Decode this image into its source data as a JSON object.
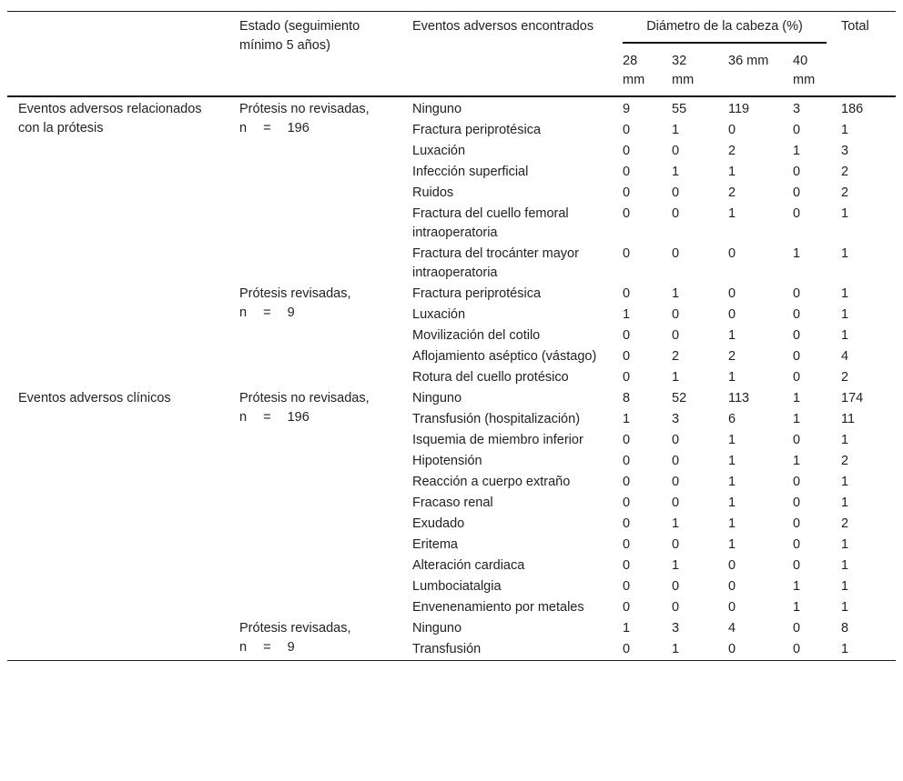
{
  "header": {
    "col_group": "",
    "col_status": "Estado (seguimiento mínimo 5 años)",
    "col_event": "Eventos adversos encontrados",
    "col_diameter": "Diámetro de la cabeza (%)",
    "col_total": "Total",
    "diameters": [
      "28 mm",
      "32 mm",
      "36 mm",
      "40 mm"
    ]
  },
  "sections": [
    {
      "label": "Eventos adversos relacionados con la prótesis",
      "subgroups": [
        {
          "status": "Prótesis no revisadas,",
          "n": "n = 196",
          "rows": [
            {
              "event": "Ninguno",
              "values": [
                "9",
                "55",
                "119",
                "3"
              ],
              "total": "186"
            },
            {
              "event": "Fractura periprotésica",
              "values": [
                "0",
                "1",
                "0",
                "0"
              ],
              "total": "1"
            },
            {
              "event": "Luxación",
              "values": [
                "0",
                "0",
                "2",
                "1"
              ],
              "total": "3"
            },
            {
              "event": "Infección superficial",
              "values": [
                "0",
                "1",
                "1",
                "0"
              ],
              "total": "2"
            },
            {
              "event": "Ruidos",
              "values": [
                "0",
                "0",
                "2",
                "0"
              ],
              "total": "2"
            },
            {
              "event": "Fractura del cuello femoral intraoperatoria",
              "values": [
                "0",
                "0",
                "1",
                "0"
              ],
              "total": "1"
            },
            {
              "event": "Fractura del trocánter mayor intraoperatoria",
              "values": [
                "0",
                "0",
                "0",
                "1"
              ],
              "total": "1"
            }
          ]
        },
        {
          "status": "Prótesis revisadas,",
          "n": "n = 9",
          "rows": [
            {
              "event": "Fractura periprotésica",
              "values": [
                "0",
                "1",
                "0",
                "0"
              ],
              "total": "1"
            },
            {
              "event": "Luxación",
              "values": [
                "1",
                "0",
                "0",
                "0"
              ],
              "total": "1"
            },
            {
              "event": "Movilización del cotilo",
              "values": [
                "0",
                "0",
                "1",
                "0"
              ],
              "total": "1"
            },
            {
              "event": "Aflojamiento aséptico (vástago)",
              "values": [
                "0",
                "2",
                "2",
                "0"
              ],
              "total": "4"
            },
            {
              "event": "Rotura del cuello protésico",
              "values": [
                "0",
                "1",
                "1",
                "0"
              ],
              "total": "2"
            }
          ]
        }
      ]
    },
    {
      "label": "Eventos adversos clínicos",
      "subgroups": [
        {
          "status": "Prótesis no revisadas,",
          "n": "n = 196",
          "rows": [
            {
              "event": "Ninguno",
              "values": [
                "8",
                "52",
                "113",
                "1"
              ],
              "total": "174"
            },
            {
              "event": "Transfusión (hospitalización)",
              "values": [
                "1",
                "3",
                "6",
                "1"
              ],
              "total": "11"
            },
            {
              "event": "Isquemia de miembro inferior",
              "values": [
                "0",
                "0",
                "1",
                "0"
              ],
              "total": "1"
            },
            {
              "event": "Hipotensión",
              "values": [
                "0",
                "0",
                "1",
                "1"
              ],
              "total": "2"
            },
            {
              "event": "Reacción a cuerpo extraño",
              "values": [
                "0",
                "0",
                "1",
                "0"
              ],
              "total": "1"
            },
            {
              "event": "Fracaso renal",
              "values": [
                "0",
                "0",
                "1",
                "0"
              ],
              "total": "1"
            },
            {
              "event": "Exudado",
              "values": [
                "0",
                "1",
                "1",
                "0"
              ],
              "total": "2"
            },
            {
              "event": "Eritema",
              "values": [
                "0",
                "0",
                "1",
                "0"
              ],
              "total": "1"
            },
            {
              "event": "Alteración cardiaca",
              "values": [
                "0",
                "1",
                "0",
                "0"
              ],
              "total": "1"
            },
            {
              "event": "Lumbociatalgia",
              "values": [
                "0",
                "0",
                "0",
                "1"
              ],
              "total": "1"
            },
            {
              "event": "Envenenamiento por metales",
              "values": [
                "0",
                "0",
                "0",
                "1"
              ],
              "total": "1"
            }
          ]
        },
        {
          "status": "Prótesis revisadas,",
          "n": "n = 9",
          "rows": [
            {
              "event": "Ninguno",
              "values": [
                "1",
                "3",
                "4",
                "0"
              ],
              "total": "8"
            },
            {
              "event": "Transfusión",
              "values": [
                "0",
                "1",
                "0",
                "0"
              ],
              "total": "1"
            }
          ]
        }
      ]
    }
  ]
}
